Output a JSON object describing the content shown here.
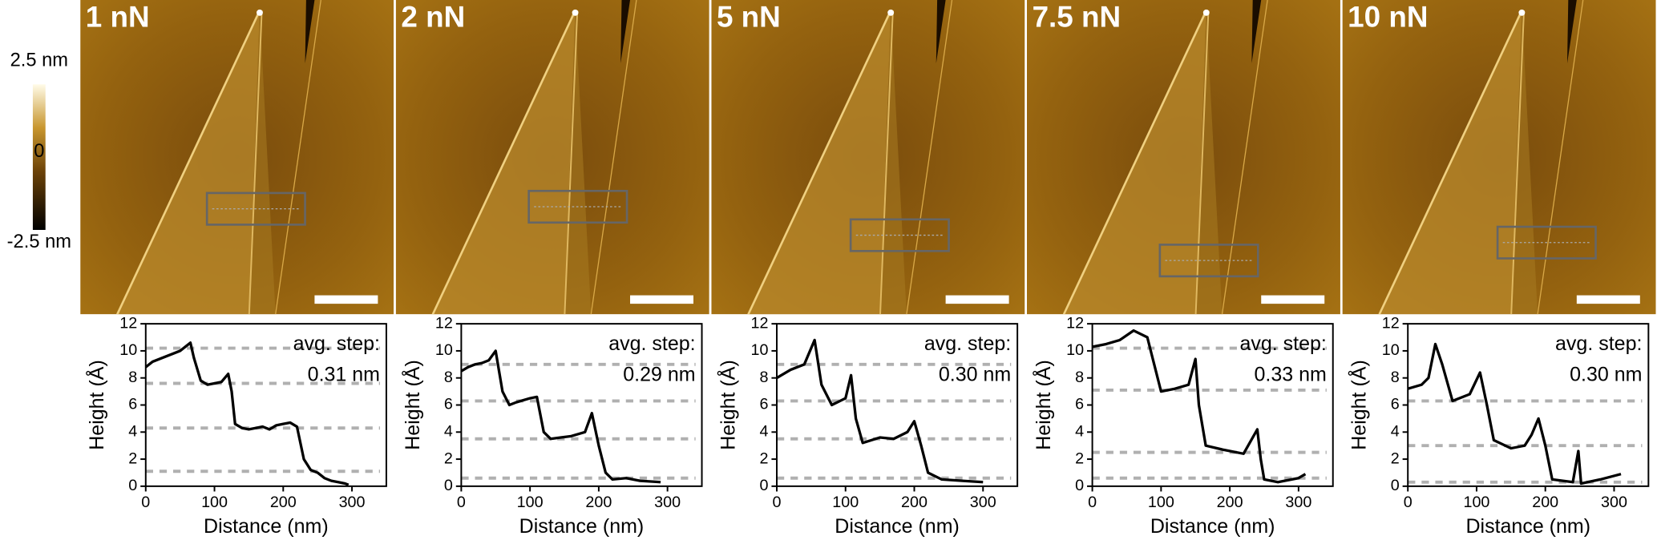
{
  "colorbar": {
    "lim": [
      -2.5,
      2.5
    ],
    "ticks": [
      {
        "value": 2.5,
        "label": "2.5 nm"
      },
      {
        "value": 0,
        "label": "0"
      },
      {
        "value": -2.5,
        "label": "-2.5 nm"
      }
    ]
  },
  "chart_data": [
    {
      "type": "line",
      "title": "1 nN",
      "annotation": [
        "avg. step:",
        "0.31 nm"
      ],
      "x_label": "Distance (nm)",
      "y_label": "Height (Å)",
      "xlim": [
        0,
        350
      ],
      "ylim": [
        0,
        12
      ],
      "xticks": [
        0,
        100,
        200,
        300
      ],
      "yticks": [
        0,
        2,
        4,
        6,
        8,
        10,
        12
      ],
      "x": [
        0,
        10,
        20,
        30,
        40,
        50,
        60,
        65,
        70,
        80,
        90,
        100,
        110,
        120,
        125,
        130,
        140,
        150,
        160,
        170,
        180,
        190,
        200,
        210,
        220,
        230,
        240,
        250,
        260,
        270,
        280,
        290,
        295
      ],
      "series": [
        {
          "color": "#000000",
          "values": [
            8.8,
            9.2,
            9.4,
            9.6,
            9.8,
            10.0,
            10.4,
            10.6,
            9.5,
            7.8,
            7.5,
            7.6,
            7.7,
            8.3,
            7.0,
            4.6,
            4.3,
            4.2,
            4.3,
            4.4,
            4.2,
            4.5,
            4.6,
            4.7,
            4.4,
            2.0,
            1.2,
            1.0,
            0.6,
            0.4,
            0.3,
            0.2,
            0.1
          ]
        }
      ],
      "levels": [
        10.2,
        7.6,
        4.3,
        1.1
      ],
      "levels_color": "#b0b0b0"
    },
    {
      "type": "line",
      "title": "2 nN",
      "annotation": [
        "avg. step:",
        "0.29 nm"
      ],
      "x_label": "Distance (nm)",
      "y_label": "Height (Å)",
      "xlim": [
        0,
        350
      ],
      "ylim": [
        0,
        12
      ],
      "xticks": [
        0,
        100,
        200,
        300
      ],
      "yticks": [
        0,
        2,
        4,
        6,
        8,
        10,
        12
      ],
      "x": [
        0,
        10,
        20,
        30,
        40,
        50,
        60,
        70,
        80,
        100,
        110,
        120,
        130,
        145,
        160,
        180,
        190,
        200,
        210,
        220,
        240,
        260,
        290
      ],
      "series": [
        {
          "color": "#000000",
          "values": [
            8.5,
            8.8,
            9.0,
            9.1,
            9.3,
            10.0,
            7.0,
            6.0,
            6.2,
            6.5,
            6.6,
            4.0,
            3.5,
            3.6,
            3.7,
            4.0,
            5.4,
            3.0,
            1.0,
            0.5,
            0.6,
            0.4,
            0.3
          ]
        }
      ],
      "levels": [
        9.0,
        6.3,
        3.5,
        0.6
      ],
      "levels_color": "#b0b0b0"
    },
    {
      "type": "line",
      "title": "5 nN",
      "annotation": [
        "avg. step:",
        "0.30 nm"
      ],
      "x_label": "Distance (nm)",
      "y_label": "Height (Å)",
      "xlim": [
        0,
        350
      ],
      "ylim": [
        0,
        12
      ],
      "xticks": [
        0,
        100,
        200,
        300
      ],
      "yticks": [
        0,
        2,
        4,
        6,
        8,
        10,
        12
      ],
      "x": [
        0,
        20,
        40,
        55,
        65,
        80,
        100,
        108,
        115,
        125,
        150,
        170,
        190,
        200,
        210,
        220,
        240,
        270,
        300
      ],
      "series": [
        {
          "color": "#000000",
          "values": [
            8.0,
            8.6,
            9.0,
            10.8,
            7.5,
            6.0,
            6.5,
            8.2,
            5.0,
            3.2,
            3.6,
            3.5,
            4.0,
            4.8,
            3.0,
            1.0,
            0.5,
            0.4,
            0.3
          ]
        }
      ],
      "levels": [
        9.0,
        6.3,
        3.5,
        0.6
      ],
      "levels_color": "#b0b0b0"
    },
    {
      "type": "line",
      "title": "7.5 nN",
      "annotation": [
        "avg. step:",
        "0.33 nm"
      ],
      "x_label": "Distance (nm)",
      "y_label": "Height (Å)",
      "xlim": [
        0,
        350
      ],
      "ylim": [
        0,
        12
      ],
      "xticks": [
        0,
        100,
        200,
        300
      ],
      "yticks": [
        0,
        2,
        4,
        6,
        8,
        10,
        12
      ],
      "x": [
        0,
        20,
        40,
        60,
        80,
        90,
        100,
        120,
        140,
        150,
        155,
        165,
        190,
        220,
        240,
        245,
        250,
        270,
        300,
        310
      ],
      "series": [
        {
          "color": "#000000",
          "values": [
            10.3,
            10.5,
            10.8,
            11.5,
            11.0,
            9.0,
            7.0,
            7.2,
            7.5,
            9.4,
            6.0,
            3.0,
            2.7,
            2.4,
            4.2,
            2.0,
            0.5,
            0.3,
            0.6,
            0.9
          ]
        }
      ],
      "levels": [
        10.2,
        7.1,
        2.5,
        0.6
      ],
      "levels_color": "#b0b0b0"
    },
    {
      "type": "line",
      "title": "10 nN",
      "annotation": [
        "avg. step:",
        "0.30 nm"
      ],
      "x_label": "Distance (nm)",
      "y_label": "Height (Å)",
      "xlim": [
        0,
        350
      ],
      "ylim": [
        0,
        12
      ],
      "xticks": [
        0,
        100,
        200,
        300
      ],
      "yticks": [
        0,
        2,
        4,
        6,
        8,
        10,
        12
      ],
      "x": [
        0,
        20,
        30,
        40,
        50,
        65,
        90,
        105,
        115,
        125,
        150,
        170,
        180,
        190,
        200,
        210,
        240,
        248,
        252,
        280,
        310
      ],
      "series": [
        {
          "color": "#000000",
          "values": [
            7.2,
            7.5,
            8.0,
            10.5,
            9.0,
            6.3,
            6.8,
            8.4,
            6.0,
            3.4,
            2.8,
            3.0,
            3.8,
            5.0,
            3.0,
            0.5,
            0.3,
            2.6,
            0.2,
            0.5,
            0.9
          ]
        }
      ],
      "levels": [
        6.3,
        3.0,
        0.3
      ],
      "levels_color": "#b0b0b0"
    }
  ]
}
